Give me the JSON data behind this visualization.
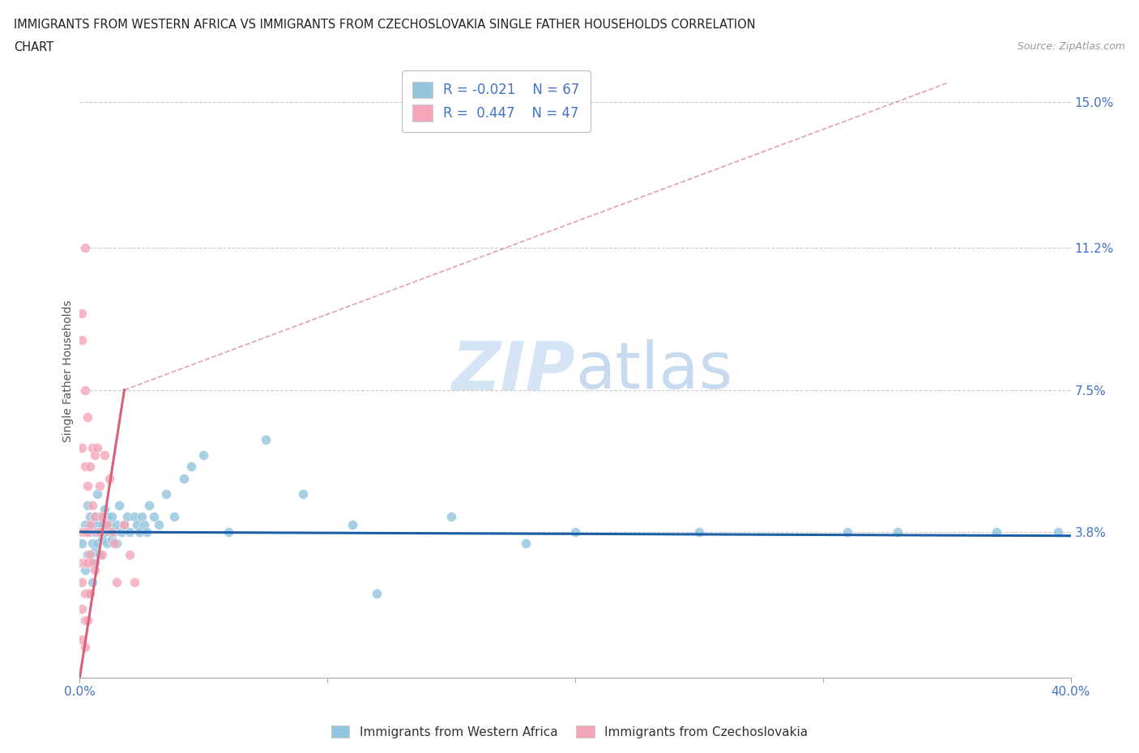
{
  "title_line1": "IMMIGRANTS FROM WESTERN AFRICA VS IMMIGRANTS FROM CZECHOSLOVAKIA SINGLE FATHER HOUSEHOLDS CORRELATION",
  "title_line2": "CHART",
  "source": "Source: ZipAtlas.com",
  "ylabel": "Single Father Households",
  "xlim": [
    0.0,
    0.4
  ],
  "ylim": [
    0.0,
    0.16
  ],
  "yticks": [
    0.0,
    0.038,
    0.075,
    0.112,
    0.15
  ],
  "ytick_labels": [
    "",
    "3.8%",
    "7.5%",
    "11.2%",
    "15.0%"
  ],
  "xtick_vals": [
    0.0,
    0.1,
    0.2,
    0.3,
    0.4
  ],
  "xtick_labels": [
    "0.0%",
    "",
    "",
    "",
    "40.0%"
  ],
  "color_blue": "#92c5de",
  "color_pink": "#f4a6b8",
  "color_blue_line": "#1a5fa8",
  "color_pink_line": "#d9607a",
  "color_dashed": "#e0a0b0",
  "watermark_zip": "ZIP",
  "watermark_atlas": "atlas",
  "watermark_color": "#d5e5f5",
  "legend_label1": "Immigrants from Western Africa",
  "legend_label2": "Immigrants from Czechoslovakia",
  "blue_r": "R = -0.021",
  "blue_n": "N = 67",
  "pink_r": "R =  0.447",
  "pink_n": "N = 47",
  "blue_dots_x": [
    0.001,
    0.002,
    0.002,
    0.003,
    0.003,
    0.003,
    0.004,
    0.004,
    0.004,
    0.005,
    0.005,
    0.005,
    0.006,
    0.006,
    0.006,
    0.006,
    0.007,
    0.007,
    0.007,
    0.008,
    0.008,
    0.008,
    0.009,
    0.009,
    0.01,
    0.01,
    0.011,
    0.011,
    0.012,
    0.012,
    0.013,
    0.013,
    0.014,
    0.015,
    0.015,
    0.016,
    0.017,
    0.018,
    0.019,
    0.02,
    0.022,
    0.023,
    0.024,
    0.025,
    0.026,
    0.027,
    0.028,
    0.03,
    0.032,
    0.035,
    0.038,
    0.042,
    0.045,
    0.05,
    0.06,
    0.075,
    0.09,
    0.11,
    0.15,
    0.2,
    0.25,
    0.31,
    0.33,
    0.37,
    0.395,
    0.12,
    0.18
  ],
  "blue_dots_y": [
    0.035,
    0.04,
    0.028,
    0.038,
    0.032,
    0.045,
    0.038,
    0.03,
    0.042,
    0.035,
    0.04,
    0.025,
    0.038,
    0.033,
    0.042,
    0.03,
    0.04,
    0.035,
    0.048,
    0.038,
    0.032,
    0.042,
    0.036,
    0.04,
    0.038,
    0.044,
    0.035,
    0.042,
    0.038,
    0.04,
    0.036,
    0.042,
    0.038,
    0.04,
    0.035,
    0.045,
    0.038,
    0.04,
    0.042,
    0.038,
    0.042,
    0.04,
    0.038,
    0.042,
    0.04,
    0.038,
    0.045,
    0.042,
    0.04,
    0.048,
    0.042,
    0.052,
    0.055,
    0.058,
    0.038,
    0.062,
    0.048,
    0.04,
    0.042,
    0.038,
    0.038,
    0.038,
    0.038,
    0.038,
    0.038,
    0.022,
    0.035
  ],
  "pink_dots_x": [
    0.001,
    0.001,
    0.001,
    0.001,
    0.001,
    0.001,
    0.001,
    0.001,
    0.002,
    0.002,
    0.002,
    0.002,
    0.002,
    0.002,
    0.002,
    0.002,
    0.003,
    0.003,
    0.003,
    0.003,
    0.003,
    0.003,
    0.004,
    0.004,
    0.004,
    0.004,
    0.005,
    0.005,
    0.005,
    0.006,
    0.006,
    0.006,
    0.007,
    0.007,
    0.008,
    0.008,
    0.009,
    0.009,
    0.01,
    0.011,
    0.012,
    0.013,
    0.014,
    0.015,
    0.018,
    0.02,
    0.022
  ],
  "pink_dots_y": [
    0.095,
    0.088,
    0.06,
    0.038,
    0.03,
    0.025,
    0.018,
    0.01,
    0.112,
    0.075,
    0.055,
    0.038,
    0.03,
    0.022,
    0.015,
    0.008,
    0.068,
    0.05,
    0.038,
    0.03,
    0.022,
    0.015,
    0.055,
    0.04,
    0.032,
    0.022,
    0.06,
    0.045,
    0.03,
    0.058,
    0.042,
    0.028,
    0.06,
    0.038,
    0.05,
    0.038,
    0.042,
    0.032,
    0.058,
    0.04,
    0.052,
    0.038,
    0.035,
    0.025,
    0.04,
    0.032,
    0.025
  ],
  "pink_line_x0": 0.0,
  "pink_line_y0": 0.0,
  "pink_line_x_solid_end": 0.018,
  "pink_line_y_solid_end": 0.075,
  "pink_line_x_dash_end": 0.35,
  "pink_line_y_dash_end": 0.155,
  "blue_line_x0": 0.0,
  "blue_line_y0": 0.038,
  "blue_line_x1": 0.4,
  "blue_line_y1": 0.037
}
